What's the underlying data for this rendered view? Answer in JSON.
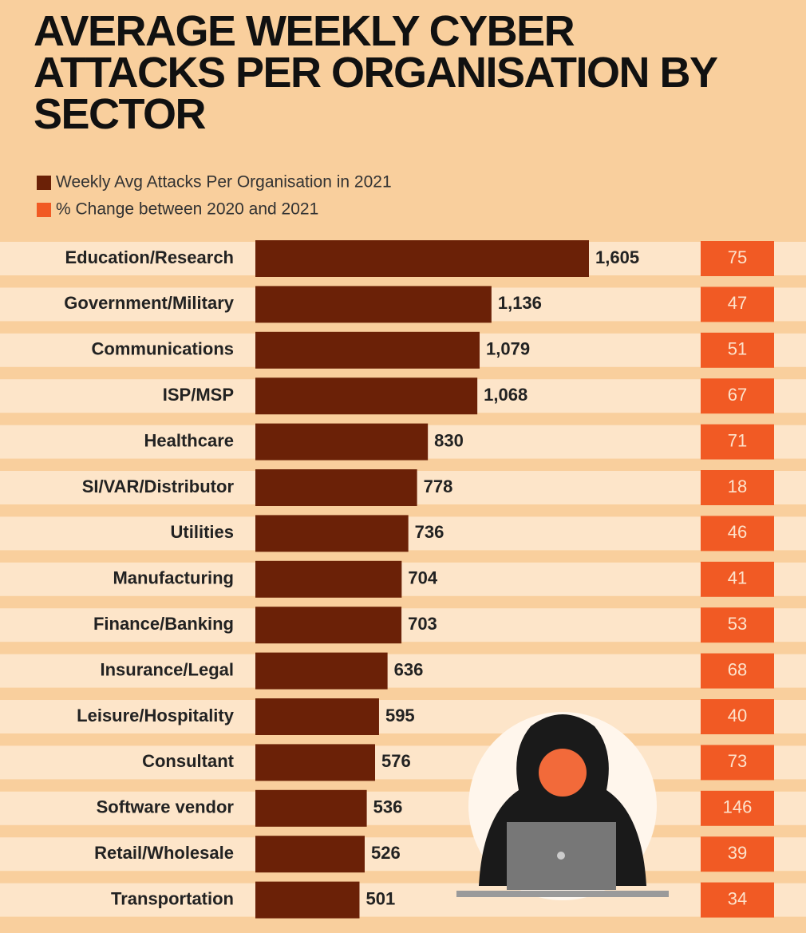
{
  "chart_data": {
    "type": "bar",
    "orientation": "horizontal",
    "title": "AVERAGE WEEKLY CYBER ATTACKS PER ORGANISATION BY SECTOR",
    "categories": [
      "Education/Research",
      "Government/Military",
      "Communications",
      "ISP/MSP",
      "Healthcare",
      "SI/VAR/Distributor",
      "Utilities",
      "Manufacturing",
      "Finance/Banking",
      "Insurance/Legal",
      "Leisure/Hospitality",
      "Consultant",
      "Software vendor",
      "Retail/Wholesale",
      "Transportation"
    ],
    "series": [
      {
        "name": "Weekly Avg Attacks Per Organisation in 2021",
        "color": "#6b2107",
        "values": [
          1605,
          1136,
          1079,
          1068,
          830,
          778,
          736,
          704,
          703,
          636,
          595,
          576,
          536,
          526,
          501
        ],
        "value_labels": [
          "1,605",
          "1,136",
          "1,079",
          "1,068",
          "830",
          "778",
          "736",
          "704",
          "703",
          "636",
          "595",
          "576",
          "536",
          "526",
          "501"
        ]
      },
      {
        "name": "% Change between 2020 and 2021",
        "color": "#f15a24",
        "values": [
          75,
          47,
          51,
          67,
          71,
          18,
          46,
          41,
          53,
          68,
          40,
          73,
          146,
          39,
          34
        ]
      }
    ]
  }
}
